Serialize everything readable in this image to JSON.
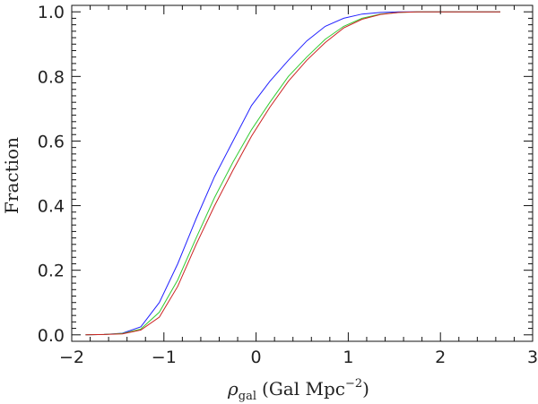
{
  "chart_data": {
    "type": "line",
    "title": "",
    "xlabel_symbol": "ρ",
    "xlabel_subscript": "gal",
    "xlabel_unit_prefix": "(Gal Mpc",
    "xlabel_unit_exponent": "−2",
    "xlabel_unit_suffix": ")",
    "ylabel": "Fraction",
    "xlim": [
      -2,
      3
    ],
    "ylim": [
      -0.02,
      1.02
    ],
    "xticks": [
      -2,
      -1,
      0,
      1,
      2,
      3
    ],
    "xtick_labels": [
      "−2",
      "−1",
      "0",
      "1",
      "2",
      "3"
    ],
    "yticks": [
      0.0,
      0.2,
      0.4,
      0.6,
      0.8,
      1.0
    ],
    "ytick_labels": [
      "0.0",
      "0.2",
      "0.4",
      "0.6",
      "0.8",
      "1.0"
    ],
    "grid": false,
    "series": [
      {
        "color": "#2222ff",
        "x": [
          -1.85,
          -1.65,
          -1.45,
          -1.25,
          -1.05,
          -0.85,
          -0.65,
          -0.45,
          -0.25,
          -0.05,
          0.15,
          0.35,
          0.55,
          0.75,
          0.95,
          1.15,
          1.35,
          1.55,
          1.75,
          1.95,
          2.15,
          2.35,
          2.55,
          2.65
        ],
        "y": [
          0.0,
          0.001,
          0.005,
          0.025,
          0.1,
          0.22,
          0.36,
          0.49,
          0.6,
          0.71,
          0.785,
          0.85,
          0.91,
          0.955,
          0.98,
          0.993,
          0.998,
          1.0,
          1.0,
          1.0,
          1.0,
          1.0,
          1.0,
          1.0
        ]
      },
      {
        "color": "#33cc33",
        "x": [
          -1.85,
          -1.65,
          -1.45,
          -1.25,
          -1.05,
          -0.85,
          -0.65,
          -0.45,
          -0.25,
          -0.05,
          0.15,
          0.35,
          0.55,
          0.75,
          0.95,
          1.15,
          1.35,
          1.55,
          1.75,
          1.95,
          2.15,
          2.35,
          2.55,
          2.65
        ],
        "y": [
          0.0,
          0.001,
          0.004,
          0.018,
          0.07,
          0.17,
          0.3,
          0.425,
          0.535,
          0.635,
          0.72,
          0.8,
          0.86,
          0.915,
          0.955,
          0.98,
          0.993,
          0.998,
          1.0,
          1.0,
          1.0,
          1.0,
          1.0,
          1.0
        ]
      },
      {
        "color": "#cc2222",
        "x": [
          -1.85,
          -1.65,
          -1.45,
          -1.25,
          -1.05,
          -0.85,
          -0.65,
          -0.45,
          -0.25,
          -0.05,
          0.15,
          0.35,
          0.55,
          0.75,
          0.95,
          1.15,
          1.35,
          1.55,
          1.75,
          1.95,
          2.15,
          2.35,
          2.55,
          2.65
        ],
        "y": [
          0.0,
          0.001,
          0.003,
          0.015,
          0.055,
          0.15,
          0.28,
          0.4,
          0.51,
          0.615,
          0.705,
          0.785,
          0.85,
          0.905,
          0.95,
          0.977,
          0.992,
          0.998,
          1.0,
          1.0,
          1.0,
          1.0,
          1.0,
          1.0
        ]
      }
    ]
  }
}
